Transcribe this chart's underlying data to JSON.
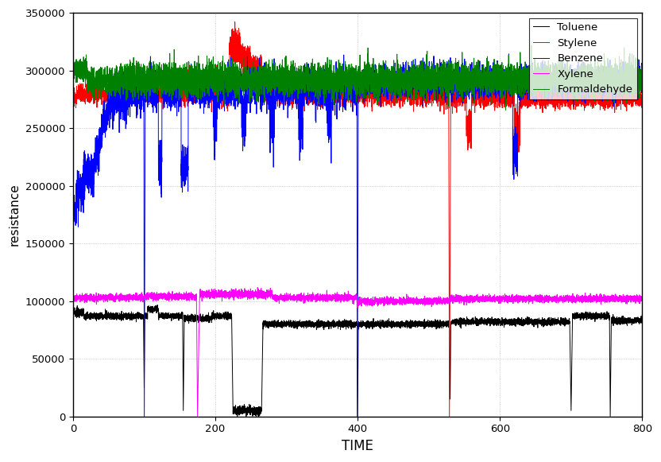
{
  "title": "",
  "xlabel": "TIME",
  "ylabel": "resistance",
  "xlim": [
    0,
    800
  ],
  "ylim": [
    0,
    350000
  ],
  "yticks": [
    0,
    50000,
    100000,
    150000,
    200000,
    250000,
    300000,
    350000
  ],
  "xticks": [
    0,
    200,
    400,
    600,
    800
  ],
  "grid": true,
  "series": {
    "Toluene": {
      "color": "black",
      "lw": 0.7
    },
    "Stylene": {
      "color": "red",
      "lw": 0.7
    },
    "Benzene": {
      "color": "blue",
      "lw": 0.7
    },
    "Xylene": {
      "color": "magenta",
      "lw": 0.7
    },
    "Formaldehyde": {
      "color": "green",
      "lw": 0.7
    }
  },
  "legend_loc": "upper right",
  "figsize": [
    8.32,
    5.81
  ],
  "dpi": 100
}
